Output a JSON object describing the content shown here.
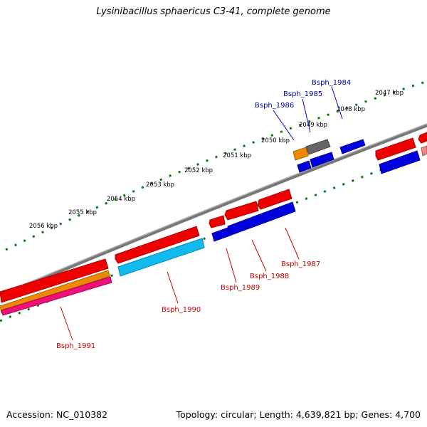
{
  "title": "Lysinibacillus sphaericus C3-41, complete genome",
  "accession_text": "Accession: NC_010382",
  "stats_text": "Topology: circular; Length: 4,639,821 bp; Genes: 4,700",
  "colors": {
    "forward_gene": "#ee0000",
    "reverse_gene": "#0000dd",
    "backbone": "#777777",
    "tick": "#117711",
    "light_blue": "#11bbee",
    "orange": "#ee8800",
    "pink": "#ee1177",
    "gray_gene": "#666666",
    "forward_label": "#cc0000",
    "reverse_label": "#0000cc"
  },
  "kbp_ticks": [
    "2047 kbp",
    "2048 kbp",
    "2049 kbp",
    "2050 kbp",
    "2051 kbp",
    "2052 kbp",
    "2053 kbp",
    "2054 kbp",
    "2055 kbp",
    "2056 kbp"
  ],
  "gene_labels_top": [
    "Bsph_1984",
    "Bsph_1985",
    "Bsph_1986"
  ],
  "gene_labels_bottom": [
    "Bsph_1987",
    "Bsph_1988",
    "Bsph_1989",
    "Bsph_1990",
    "Bsph_1991"
  ]
}
